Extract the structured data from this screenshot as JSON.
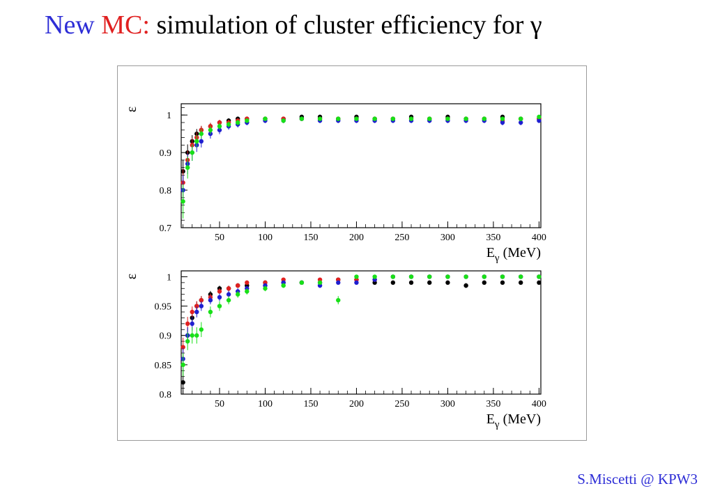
{
  "title": {
    "part_new": "New",
    "part_mc": "MC:",
    "part_rest": "simulation of cluster efficiency for γ",
    "color_new": "#2d2dd6",
    "color_mc": "#e02020"
  },
  "footer": {
    "text": "S.Miscetti @ KPW3"
  },
  "series_colors": [
    "#000000",
    "#e02020",
    "#1f1fd0",
    "#18e018"
  ],
  "chart_data": [
    {
      "type": "scatter",
      "ylabel": "ε",
      "xlabel_main": "E",
      "xlabel_sub": "γ",
      "xlabel_unit": "(MeV)",
      "xlim": [
        8,
        402
      ],
      "ylim": [
        0.7,
        1.03
      ],
      "xticks": [
        50,
        100,
        150,
        200,
        250,
        300,
        350,
        400
      ],
      "yticks": [
        0.7,
        0.8,
        0.9,
        1
      ],
      "ytick_labels": [
        "0.7",
        "0.8",
        "0.9",
        "1"
      ],
      "error_bars": true,
      "series": [
        {
          "color": "#000000",
          "x": [
            10,
            15,
            20,
            25,
            30,
            40,
            50,
            60,
            70,
            80,
            100,
            120,
            140,
            160,
            180,
            200,
            220,
            240,
            260,
            280,
            300,
            320,
            340,
            360,
            380,
            400
          ],
          "y": [
            0.85,
            0.9,
            0.93,
            0.95,
            0.96,
            0.97,
            0.98,
            0.985,
            0.99,
            0.99,
            0.99,
            0.99,
            0.995,
            0.995,
            0.99,
            0.995,
            0.99,
            0.99,
            0.995,
            0.99,
            0.995,
            0.99,
            0.99,
            0.995,
            0.99,
            0.99
          ]
        },
        {
          "color": "#e02020",
          "x": [
            10,
            15,
            20,
            25,
            30,
            40,
            50,
            60,
            70,
            80,
            100,
            120,
            140,
            160,
            180,
            200,
            220,
            240,
            260,
            280,
            300,
            320,
            340,
            360,
            380,
            400
          ],
          "y": [
            0.82,
            0.88,
            0.92,
            0.94,
            0.96,
            0.97,
            0.98,
            0.98,
            0.985,
            0.99,
            0.99,
            0.99,
            0.99,
            0.99,
            0.99,
            0.99,
            0.99,
            0.99,
            0.99,
            0.99,
            0.99,
            0.99,
            0.99,
            0.985,
            0.99,
            0.99
          ]
        },
        {
          "color": "#1f1fd0",
          "x": [
            10,
            15,
            20,
            25,
            30,
            40,
            50,
            60,
            70,
            80,
            100,
            120,
            140,
            160,
            180,
            200,
            220,
            240,
            260,
            280,
            300,
            320,
            340,
            360,
            380,
            400
          ],
          "y": [
            0.8,
            0.87,
            0.9,
            0.92,
            0.93,
            0.95,
            0.96,
            0.97,
            0.975,
            0.98,
            0.985,
            0.985,
            0.99,
            0.985,
            0.985,
            0.985,
            0.985,
            0.985,
            0.985,
            0.985,
            0.985,
            0.985,
            0.985,
            0.98,
            0.98,
            0.985
          ]
        },
        {
          "color": "#18e018",
          "x": [
            10,
            15,
            20,
            25,
            30,
            40,
            50,
            60,
            70,
            80,
            100,
            120,
            140,
            160,
            180,
            200,
            220,
            240,
            260,
            280,
            300,
            320,
            340,
            360,
            380,
            400
          ],
          "y": [
            0.77,
            0.86,
            0.9,
            0.93,
            0.95,
            0.96,
            0.97,
            0.975,
            0.98,
            0.985,
            0.99,
            0.985,
            0.99,
            0.99,
            0.99,
            0.99,
            0.99,
            0.99,
            0.99,
            0.99,
            0.99,
            0.99,
            0.99,
            0.99,
            0.99,
            0.995
          ]
        }
      ]
    },
    {
      "type": "scatter",
      "ylabel": "ε",
      "xlabel_main": "E",
      "xlabel_sub": "γ",
      "xlabel_unit": "(MeV)",
      "xlim": [
        8,
        402
      ],
      "ylim": [
        0.8,
        1.01
      ],
      "xticks": [
        50,
        100,
        150,
        200,
        250,
        300,
        350,
        400
      ],
      "yticks": [
        0.8,
        0.85,
        0.9,
        0.95,
        1
      ],
      "ytick_labels": [
        "0.8",
        "0.85",
        "0.9",
        "0.95",
        "1"
      ],
      "error_bars": true,
      "series": [
        {
          "color": "#000000",
          "x": [
            10,
            15,
            20,
            25,
            30,
            40,
            50,
            60,
            70,
            80,
            100,
            120,
            140,
            160,
            180,
            200,
            220,
            240,
            260,
            280,
            300,
            320,
            340,
            360,
            380,
            400
          ],
          "y": [
            0.82,
            0.9,
            0.93,
            0.95,
            0.96,
            0.97,
            0.98,
            0.98,
            0.985,
            0.985,
            0.99,
            0.99,
            0.99,
            0.99,
            0.995,
            0.995,
            0.99,
            0.99,
            0.99,
            0.99,
            0.99,
            0.985,
            0.99,
            0.99,
            0.99,
            0.99
          ]
        },
        {
          "color": "#e02020",
          "x": [
            10,
            15,
            20,
            25,
            30,
            40,
            50,
            60,
            70,
            80,
            100,
            120,
            140,
            160,
            180,
            200,
            220,
            240,
            260,
            280,
            300,
            320,
            340,
            360,
            380,
            400
          ],
          "y": [
            0.88,
            0.92,
            0.94,
            0.95,
            0.96,
            0.965,
            0.975,
            0.98,
            0.985,
            0.99,
            0.99,
            0.995,
            0.99,
            0.995,
            0.995,
            0.995,
            0.995,
            1,
            1,
            1,
            1,
            1,
            1,
            1,
            1,
            1
          ]
        },
        {
          "color": "#1f1fd0",
          "x": [
            10,
            15,
            20,
            25,
            30,
            40,
            50,
            60,
            70,
            80,
            100,
            120,
            140,
            160,
            180,
            200,
            220,
            240,
            260,
            280,
            300,
            320,
            340,
            360,
            380,
            400
          ],
          "y": [
            0.86,
            0.9,
            0.92,
            0.94,
            0.95,
            0.96,
            0.965,
            0.97,
            0.975,
            0.98,
            0.985,
            0.99,
            0.99,
            0.985,
            0.99,
            0.99,
            0.995,
            1,
            1,
            1,
            1,
            1,
            1,
            1,
            1,
            1
          ]
        },
        {
          "color": "#18e018",
          "x": [
            10,
            15,
            20,
            25,
            30,
            40,
            50,
            60,
            70,
            80,
            100,
            120,
            140,
            160,
            180,
            200,
            220,
            240,
            260,
            280,
            300,
            320,
            340,
            360,
            380,
            400
          ],
          "y": [
            0.85,
            0.89,
            0.9,
            0.9,
            0.91,
            0.94,
            0.95,
            0.96,
            0.97,
            0.975,
            0.98,
            0.985,
            0.99,
            0.99,
            0.96,
            1,
            1,
            1,
            1,
            1,
            1,
            1,
            1,
            1,
            1,
            1
          ]
        }
      ]
    }
  ]
}
